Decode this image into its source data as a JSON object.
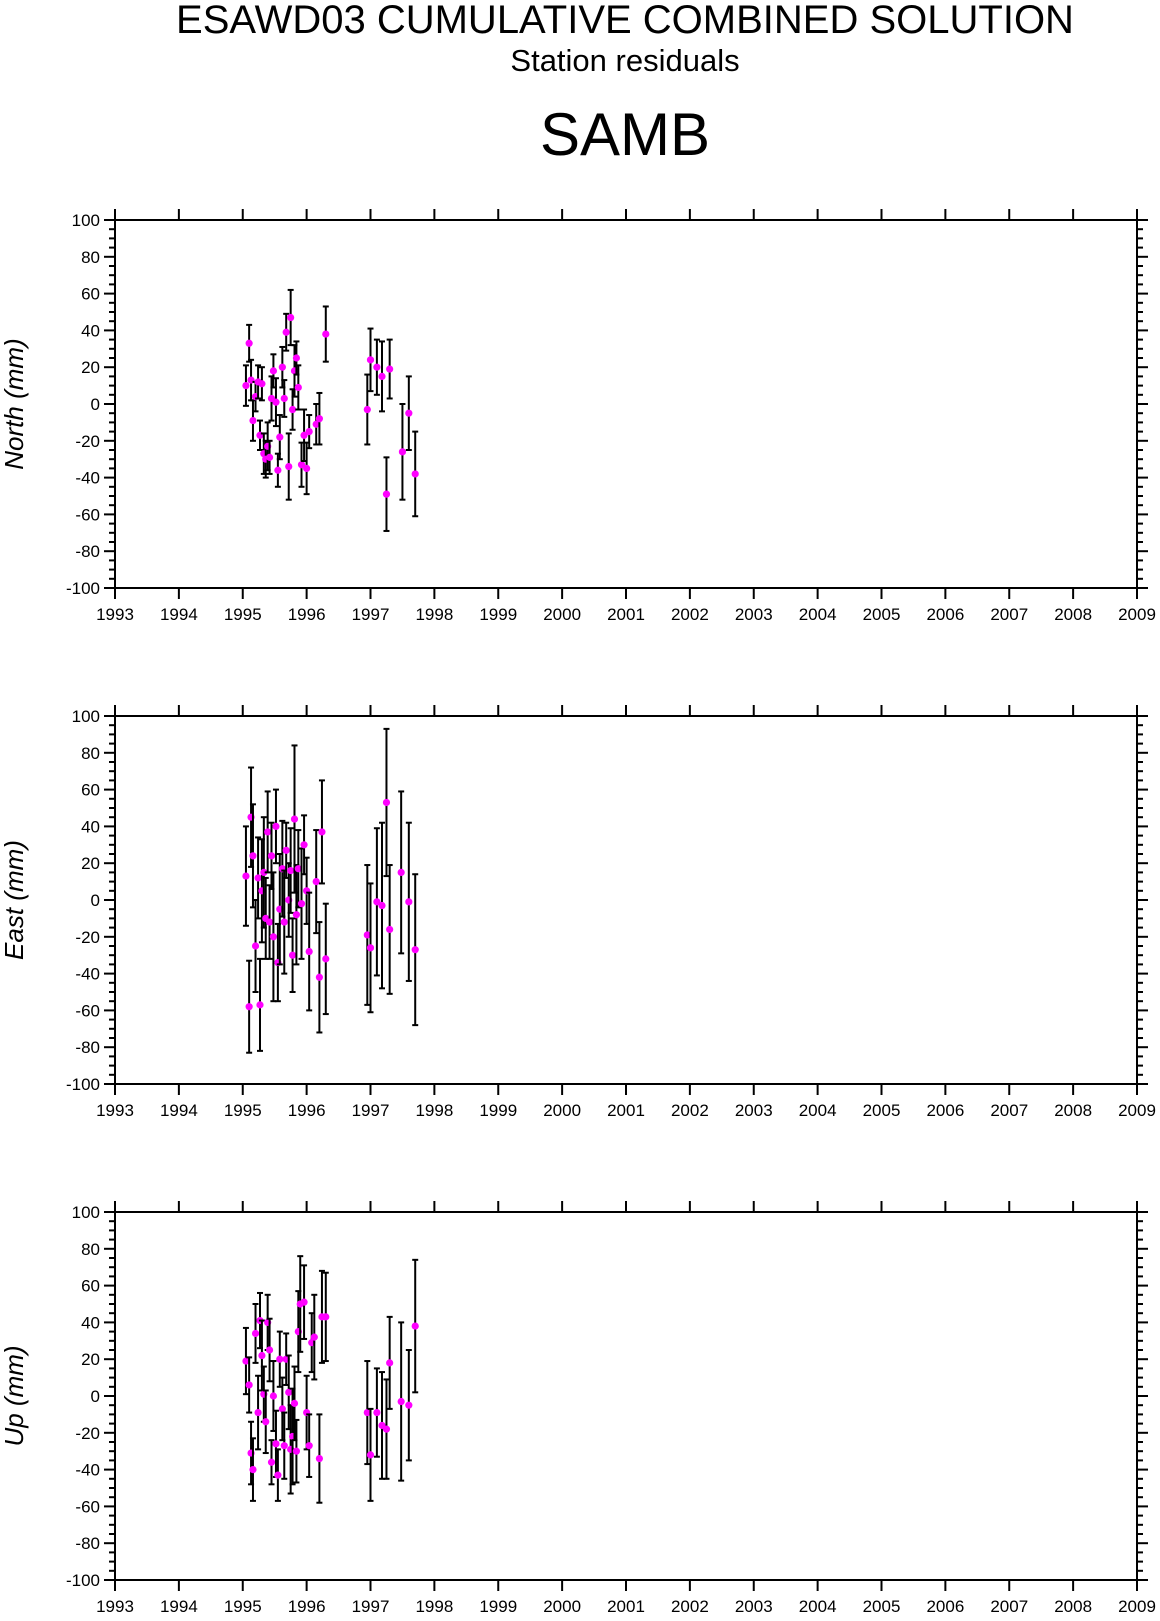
{
  "header": {
    "title": "ESAWD03 CUMULATIVE COMBINED SOLUTION",
    "subtitle": "Station residuals",
    "station": "SAMB"
  },
  "colors": {
    "point": "#ff00ff",
    "error_bar": "#000000",
    "axis": "#000000"
  },
  "chart_data": [
    {
      "type": "scatter",
      "component": "north",
      "ylabel": "North (mm)",
      "xlim": [
        1993,
        2009
      ],
      "ylim": [
        -100,
        100
      ],
      "x_ticks": [
        "1993",
        "1994",
        "1995",
        "1996",
        "1997",
        "1998",
        "1999",
        "2000",
        "2001",
        "2002",
        "2003",
        "2004",
        "2005",
        "2006",
        "2007",
        "2008",
        "2009"
      ],
      "y_ticks": [
        "100",
        "80",
        "60",
        "40",
        "20",
        "0",
        "-20",
        "-40",
        "-60",
        "-80",
        "-100"
      ],
      "grid": false,
      "points": [
        {
          "x": 1995.05,
          "y": 10,
          "err": 11
        },
        {
          "x": 1995.1,
          "y": 33,
          "err": 10
        },
        {
          "x": 1995.13,
          "y": 13,
          "err": 11
        },
        {
          "x": 1995.16,
          "y": -9,
          "err": 11
        },
        {
          "x": 1995.2,
          "y": 4,
          "err": 8
        },
        {
          "x": 1995.24,
          "y": 12,
          "err": 9
        },
        {
          "x": 1995.27,
          "y": -17,
          "err": 8
        },
        {
          "x": 1995.3,
          "y": 11,
          "err": 9
        },
        {
          "x": 1995.33,
          "y": -27,
          "err": 11
        },
        {
          "x": 1995.36,
          "y": -30,
          "err": 10
        },
        {
          "x": 1995.39,
          "y": -23,
          "err": 13
        },
        {
          "x": 1995.42,
          "y": -29,
          "err": 9
        },
        {
          "x": 1995.45,
          "y": 3,
          "err": 12
        },
        {
          "x": 1995.48,
          "y": 18,
          "err": 9
        },
        {
          "x": 1995.52,
          "y": 1,
          "err": 13
        },
        {
          "x": 1995.55,
          "y": -36,
          "err": 9
        },
        {
          "x": 1995.58,
          "y": -18,
          "err": 12
        },
        {
          "x": 1995.62,
          "y": 20,
          "err": 11
        },
        {
          "x": 1995.65,
          "y": 3,
          "err": 10
        },
        {
          "x": 1995.68,
          "y": 39,
          "err": 10
        },
        {
          "x": 1995.72,
          "y": -34,
          "err": 18
        },
        {
          "x": 1995.75,
          "y": 47,
          "err": 15
        },
        {
          "x": 1995.78,
          "y": -3,
          "err": 11
        },
        {
          "x": 1995.81,
          "y": 18,
          "err": 14
        },
        {
          "x": 1995.84,
          "y": 25,
          "err": 9
        },
        {
          "x": 1995.87,
          "y": 9,
          "err": 12
        },
        {
          "x": 1995.92,
          "y": -33,
          "err": 12
        },
        {
          "x": 1995.96,
          "y": -17,
          "err": 14
        },
        {
          "x": 1996.0,
          "y": -35,
          "err": 14
        },
        {
          "x": 1996.04,
          "y": -15,
          "err": 9
        },
        {
          "x": 1996.15,
          "y": -11,
          "err": 11
        },
        {
          "x": 1996.2,
          "y": -8,
          "err": 14
        },
        {
          "x": 1996.3,
          "y": 38,
          "err": 15
        },
        {
          "x": 1996.95,
          "y": -3,
          "err": 19
        },
        {
          "x": 1997.0,
          "y": 24,
          "err": 17
        },
        {
          "x": 1997.1,
          "y": 20,
          "err": 15
        },
        {
          "x": 1997.18,
          "y": 15,
          "err": 19
        },
        {
          "x": 1997.25,
          "y": -49,
          "err": 20
        },
        {
          "x": 1997.3,
          "y": 19,
          "err": 16
        },
        {
          "x": 1997.5,
          "y": -26,
          "err": 26
        },
        {
          "x": 1997.6,
          "y": -5,
          "err": 20
        },
        {
          "x": 1997.7,
          "y": -38,
          "err": 23
        }
      ]
    },
    {
      "type": "scatter",
      "component": "east",
      "ylabel": "East (mm)",
      "xlim": [
        1993,
        2009
      ],
      "ylim": [
        -100,
        100
      ],
      "x_ticks": [
        "1993",
        "1994",
        "1995",
        "1996",
        "1997",
        "1998",
        "1999",
        "2000",
        "2001",
        "2002",
        "2003",
        "2004",
        "2005",
        "2006",
        "2007",
        "2008",
        "2009"
      ],
      "y_ticks": [
        "100",
        "80",
        "60",
        "40",
        "20",
        "0",
        "-20",
        "-40",
        "-60",
        "-80",
        "-100"
      ],
      "grid": false,
      "points": [
        {
          "x": 1995.05,
          "y": 13,
          "err": 27
        },
        {
          "x": 1995.1,
          "y": -58,
          "err": 25
        },
        {
          "x": 1995.13,
          "y": 45,
          "err": 27
        },
        {
          "x": 1995.16,
          "y": 24,
          "err": 28
        },
        {
          "x": 1995.2,
          "y": -25,
          "err": 25
        },
        {
          "x": 1995.24,
          "y": 12,
          "err": 22
        },
        {
          "x": 1995.27,
          "y": -57,
          "err": 25
        },
        {
          "x": 1995.3,
          "y": 5,
          "err": 28
        },
        {
          "x": 1995.33,
          "y": 15,
          "err": 30
        },
        {
          "x": 1995.36,
          "y": -10,
          "err": 22
        },
        {
          "x": 1995.39,
          "y": 37,
          "err": 22
        },
        {
          "x": 1995.42,
          "y": -12,
          "err": 20
        },
        {
          "x": 1995.45,
          "y": 24,
          "err": 18
        },
        {
          "x": 1995.48,
          "y": -20,
          "err": 35
        },
        {
          "x": 1995.52,
          "y": 40,
          "err": 20
        },
        {
          "x": 1995.55,
          "y": -34,
          "err": 21
        },
        {
          "x": 1995.58,
          "y": -5,
          "err": 30
        },
        {
          "x": 1995.62,
          "y": 17,
          "err": 26
        },
        {
          "x": 1995.65,
          "y": -12,
          "err": 28
        },
        {
          "x": 1995.68,
          "y": 27,
          "err": 15
        },
        {
          "x": 1995.72,
          "y": 0,
          "err": 20
        },
        {
          "x": 1995.75,
          "y": 16,
          "err": 23
        },
        {
          "x": 1995.78,
          "y": -30,
          "err": 20
        },
        {
          "x": 1995.81,
          "y": 44,
          "err": 40
        },
        {
          "x": 1995.84,
          "y": -8,
          "err": 27
        },
        {
          "x": 1995.87,
          "y": 17,
          "err": 21
        },
        {
          "x": 1995.92,
          "y": -2,
          "err": 30
        },
        {
          "x": 1995.96,
          "y": 30,
          "err": 16
        },
        {
          "x": 1996.0,
          "y": 5,
          "err": 18
        },
        {
          "x": 1996.04,
          "y": -28,
          "err": 32
        },
        {
          "x": 1996.15,
          "y": 10,
          "err": 28
        },
        {
          "x": 1996.2,
          "y": -42,
          "err": 30
        },
        {
          "x": 1996.24,
          "y": 37,
          "err": 28
        },
        {
          "x": 1996.3,
          "y": -32,
          "err": 30
        },
        {
          "x": 1996.95,
          "y": -19,
          "err": 38
        },
        {
          "x": 1997.0,
          "y": -26,
          "err": 35
        },
        {
          "x": 1997.1,
          "y": -1,
          "err": 40
        },
        {
          "x": 1997.18,
          "y": -3,
          "err": 45
        },
        {
          "x": 1997.25,
          "y": 53,
          "err": 40
        },
        {
          "x": 1997.3,
          "y": -16,
          "err": 35
        },
        {
          "x": 1997.48,
          "y": 15,
          "err": 44
        },
        {
          "x": 1997.6,
          "y": -1,
          "err": 43
        },
        {
          "x": 1997.7,
          "y": -27,
          "err": 41
        }
      ]
    },
    {
      "type": "scatter",
      "component": "up",
      "ylabel": "Up (mm)",
      "xlim": [
        1993,
        2009
      ],
      "ylim": [
        -100,
        100
      ],
      "x_ticks": [
        "1993",
        "1994",
        "1995",
        "1996",
        "1997",
        "1998",
        "1999",
        "2000",
        "2001",
        "2002",
        "2003",
        "2004",
        "2005",
        "2006",
        "2007",
        "2008",
        "2009"
      ],
      "y_ticks": [
        "100",
        "80",
        "60",
        "40",
        "20",
        "0",
        "-20",
        "-40",
        "-60",
        "-80",
        "-100"
      ],
      "grid": false,
      "points": [
        {
          "x": 1995.05,
          "y": 19,
          "err": 18
        },
        {
          "x": 1995.1,
          "y": 6,
          "err": 15
        },
        {
          "x": 1995.13,
          "y": -31,
          "err": 17
        },
        {
          "x": 1995.16,
          "y": -40,
          "err": 17
        },
        {
          "x": 1995.2,
          "y": 34,
          "err": 16
        },
        {
          "x": 1995.24,
          "y": -9,
          "err": 20
        },
        {
          "x": 1995.27,
          "y": 41,
          "err": 15
        },
        {
          "x": 1995.3,
          "y": 22,
          "err": 19
        },
        {
          "x": 1995.33,
          "y": 1,
          "err": 15
        },
        {
          "x": 1995.36,
          "y": -14,
          "err": 17
        },
        {
          "x": 1995.39,
          "y": 40,
          "err": 15
        },
        {
          "x": 1995.42,
          "y": 25,
          "err": 17
        },
        {
          "x": 1995.45,
          "y": -36,
          "err": 12
        },
        {
          "x": 1995.48,
          "y": 0,
          "err": 19
        },
        {
          "x": 1995.52,
          "y": -26,
          "err": 18
        },
        {
          "x": 1995.55,
          "y": -43,
          "err": 14
        },
        {
          "x": 1995.58,
          "y": 20,
          "err": 15
        },
        {
          "x": 1995.62,
          "y": -7,
          "err": 17
        },
        {
          "x": 1995.65,
          "y": -27,
          "err": 18
        },
        {
          "x": 1995.68,
          "y": 20,
          "err": 14
        },
        {
          "x": 1995.72,
          "y": 2,
          "err": 20
        },
        {
          "x": 1995.75,
          "y": -29,
          "err": 24
        },
        {
          "x": 1995.78,
          "y": -22,
          "err": 26
        },
        {
          "x": 1995.81,
          "y": -4,
          "err": 20
        },
        {
          "x": 1995.84,
          "y": -30,
          "err": 17
        },
        {
          "x": 1995.87,
          "y": 35,
          "err": 22
        },
        {
          "x": 1995.9,
          "y": 50,
          "err": 26
        },
        {
          "x": 1995.96,
          "y": 51,
          "err": 20
        },
        {
          "x": 1996.0,
          "y": -9,
          "err": 20
        },
        {
          "x": 1996.04,
          "y": -27,
          "err": 17
        },
        {
          "x": 1996.08,
          "y": 29,
          "err": 16
        },
        {
          "x": 1996.12,
          "y": 32,
          "err": 23
        },
        {
          "x": 1996.2,
          "y": -34,
          "err": 24
        },
        {
          "x": 1996.24,
          "y": 43,
          "err": 25
        },
        {
          "x": 1996.3,
          "y": 43,
          "err": 24
        },
        {
          "x": 1996.95,
          "y": -9,
          "err": 28
        },
        {
          "x": 1997.0,
          "y": -32,
          "err": 25
        },
        {
          "x": 1997.1,
          "y": -9,
          "err": 24
        },
        {
          "x": 1997.18,
          "y": -16,
          "err": 29
        },
        {
          "x": 1997.25,
          "y": -18,
          "err": 27
        },
        {
          "x": 1997.3,
          "y": 18,
          "err": 25
        },
        {
          "x": 1997.48,
          "y": -3,
          "err": 43
        },
        {
          "x": 1997.6,
          "y": -5,
          "err": 30
        },
        {
          "x": 1997.7,
          "y": 38,
          "err": 36
        }
      ]
    }
  ]
}
